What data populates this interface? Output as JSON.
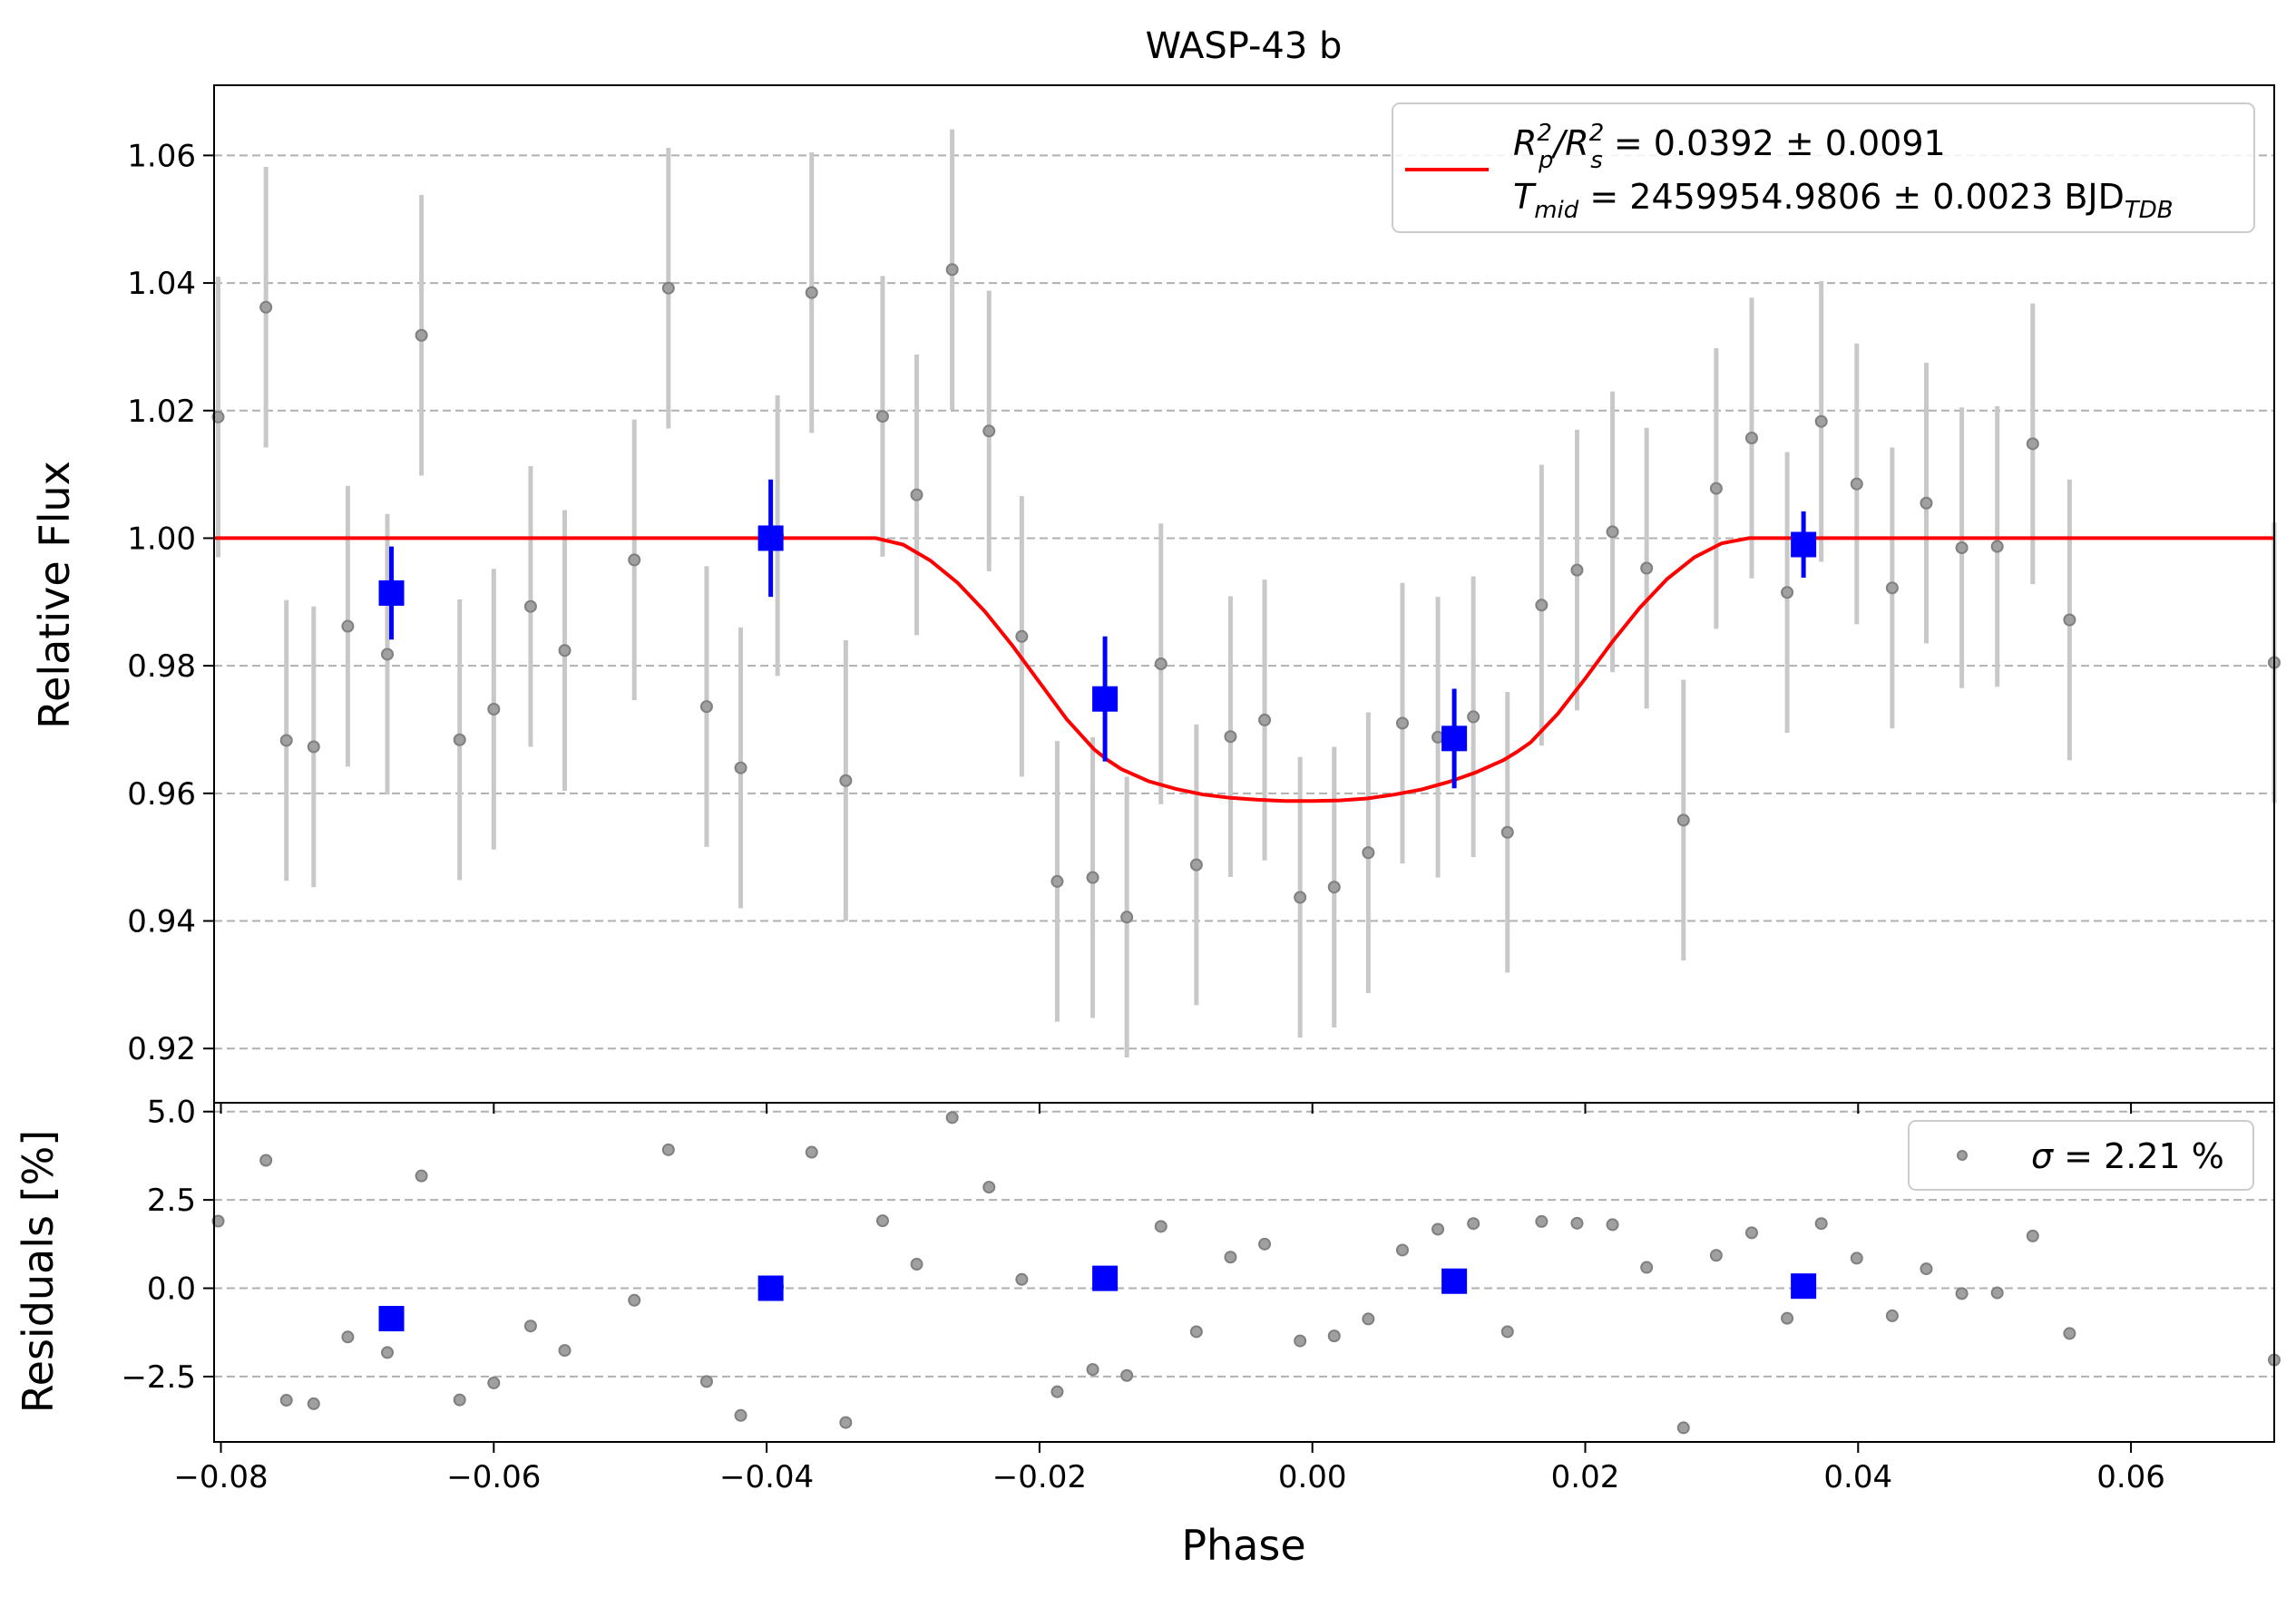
{
  "chart_data": [
    {
      "type": "scatter",
      "title": "WASP-43 b",
      "xlabel": "Phase",
      "ylabel": "Relative Flux",
      "xlim": [
        -0.0805,
        0.0705
      ],
      "ylim": [
        0.9115,
        1.071
      ],
      "xticks": [
        -0.08,
        -0.06,
        -0.04,
        -0.02,
        0.0,
        0.02,
        0.04,
        0.06
      ],
      "xtick_labels": [
        "−0.08",
        "−0.06",
        "−0.04",
        "−0.02",
        "0.00",
        "0.02",
        "0.04",
        "0.06"
      ],
      "yticks": [
        0.92,
        0.94,
        0.96,
        0.98,
        1.0,
        1.02,
        1.04,
        1.06
      ],
      "ytick_labels": [
        "0.92",
        "0.94",
        "0.96",
        "0.98",
        "1.00",
        "1.02",
        "1.04",
        "1.06"
      ],
      "grid": "horizontal dashed",
      "legend_position": "top-right",
      "legend": {
        "line1_main": "R",
        "line1_sub1": "p",
        "line1_sup1": "2",
        "line1_div": "/R",
        "line1_sub2": "s",
        "line1_sup2": "2",
        "line1_value": " = 0.0392 ± 0.0091",
        "line2_main": "T",
        "line2_sub": "mid",
        "line2_value": " = 2459954.9806 ± 0.0023 BJD",
        "line2_sub2": "TDB"
      },
      "colors": {
        "data": "#808080",
        "errorbar": "#c8c8c8",
        "binned": "#0000ff",
        "model": "#ff0000"
      },
      "data_points": {
        "x": [
          -0.0802,
          -0.0767,
          -0.0752,
          -0.0732,
          -0.0707,
          -0.0678,
          -0.0653,
          -0.0625,
          -0.06,
          -0.0573,
          -0.0548,
          -0.0497,
          -0.0472,
          -0.0444,
          -0.0419,
          -0.0392,
          -0.0367,
          -0.0342,
          -0.0315,
          -0.029,
          -0.0264,
          -0.0237,
          -0.0213,
          -0.0187,
          -0.0161,
          -0.0136,
          -0.0111,
          -0.0085,
          -0.006,
          -0.0035,
          -0.0009,
          0.0016,
          0.0041,
          0.0066,
          0.0092,
          0.0118,
          0.0143,
          0.0168,
          0.0194,
          0.022,
          0.0245,
          0.0272,
          0.0296,
          0.0322,
          0.0348,
          0.0373,
          0.0399,
          0.0425,
          0.045,
          0.0476,
          0.0502,
          0.0528,
          0.0555,
          0.0705
        ],
        "y": [
          1.019,
          1.0362,
          0.9683,
          0.9673,
          0.9862,
          0.9818,
          1.0318,
          0.9684,
          0.9732,
          0.9893,
          0.9824,
          0.9966,
          1.0392,
          0.9736,
          0.964,
          1.0004,
          1.0385,
          0.962,
          1.0191,
          1.0068,
          1.0421,
          1.0168,
          0.9846,
          0.9462,
          0.9468,
          0.9406,
          0.9803,
          0.9488,
          0.9689,
          0.9715,
          0.9437,
          0.9453,
          0.9507,
          0.971,
          0.9688,
          0.972,
          0.9539,
          0.9895,
          0.995,
          1.001,
          0.9953,
          0.9558,
          1.0078,
          1.0157,
          0.9915,
          1.0183,
          1.0085,
          0.9922,
          1.0055,
          0.9985,
          0.9987,
          1.0148,
          0.9872,
          0.9805
        ],
        "yerr": 0.022
      },
      "binned_points": {
        "x": [
          -0.0675,
          -0.0397,
          -0.0152,
          0.0104,
          0.036
        ],
        "y": [
          0.9914,
          1.0,
          0.9748,
          0.9686,
          0.999
        ],
        "yerr": [
          0.0073,
          0.0092,
          0.0098,
          0.0078,
          0.0052
        ]
      },
      "model": {
        "x": [
          -0.0805,
          -0.032,
          -0.03,
          -0.028,
          -0.026,
          -0.024,
          -0.022,
          -0.02,
          -0.018,
          -0.016,
          -0.015,
          -0.014,
          -0.012,
          -0.01,
          -0.008,
          -0.006,
          -0.004,
          -0.002,
          0.0,
          0.002,
          0.004,
          0.006,
          0.008,
          0.01,
          0.012,
          0.014,
          0.015,
          0.016,
          0.018,
          0.02,
          0.022,
          0.024,
          0.026,
          0.028,
          0.03,
          0.032,
          0.0705
        ],
        "y": [
          1.0,
          1.0,
          0.999,
          0.9965,
          0.993,
          0.9885,
          0.9832,
          0.9774,
          0.9716,
          0.9669,
          0.9652,
          0.9638,
          0.9619,
          0.9607,
          0.9598,
          0.9593,
          0.959,
          0.9588,
          0.9588,
          0.9589,
          0.9592,
          0.9598,
          0.9606,
          0.9618,
          0.9633,
          0.9652,
          0.9665,
          0.968,
          0.9725,
          0.978,
          0.9838,
          0.9891,
          0.9936,
          0.997,
          0.9992,
          1.0,
          1.0
        ]
      }
    },
    {
      "type": "scatter",
      "xlabel": "Phase",
      "ylabel": "Residuals [%]",
      "xlim": [
        -0.0805,
        0.0705
      ],
      "ylim": [
        -4.35,
        5.25
      ],
      "yticks": [
        -2.5,
        0.0,
        2.5,
        5.0
      ],
      "ytick_labels": [
        "−2.5",
        "0.0",
        "2.5",
        "5.0"
      ],
      "grid": "horizontal dashed",
      "legend_position": "top-right",
      "legend": {
        "sigma_symbol": "σ",
        "sigma_value": " = 2.21 %"
      },
      "residuals": [
        1.9,
        3.62,
        -3.17,
        -3.27,
        -1.38,
        -1.82,
        3.18,
        -3.16,
        -2.68,
        -1.07,
        -1.76,
        -0.34,
        3.92,
        -2.64,
        -3.6,
        0.04,
        3.85,
        -3.8,
        1.91,
        0.68,
        4.83,
        2.86,
        0.25,
        -2.93,
        -2.3,
        -2.47,
        1.75,
        -1.23,
        0.88,
        1.25,
        -1.49,
        -1.35,
        -0.87,
        1.08,
        1.67,
        1.83,
        -1.23,
        1.89,
        1.84,
        1.8,
        0.59,
        -3.95,
        0.93,
        1.57,
        -0.85,
        1.83,
        0.85,
        -0.78,
        0.55,
        -0.15,
        -0.13,
        1.48,
        -1.28,
        -2.03
      ],
      "binned_residuals": [
        -0.86,
        0.0,
        0.28,
        0.2,
        0.06
      ]
    }
  ]
}
